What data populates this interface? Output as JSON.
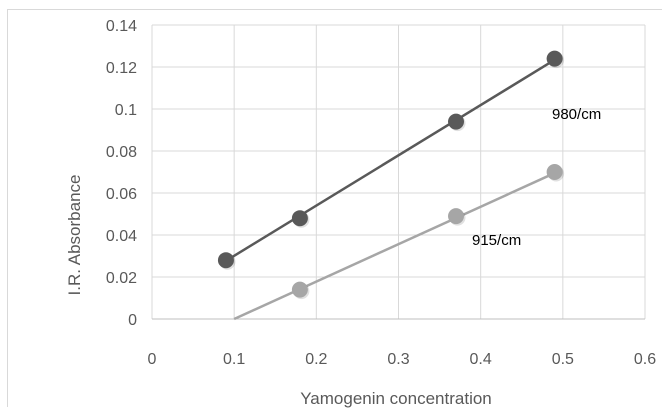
{
  "chart_data": {
    "type": "scatter",
    "xlabel": "Yamogenin concentration",
    "ylabel": "I.R. Absorbance",
    "xlim": [
      0,
      0.6
    ],
    "ylim": [
      0,
      0.14
    ],
    "xticks": [
      "0",
      "0.1",
      "0.2",
      "0.3",
      "0.4",
      "0.5",
      "0.6"
    ],
    "yticks": [
      "0",
      "0.02",
      "0.04",
      "0.06",
      "0.08",
      "0.1",
      "0.12",
      "0.14"
    ],
    "grid": true,
    "series": [
      {
        "name": "980/cm",
        "color": "#595959",
        "points": [
          [
            0.09,
            0.028
          ],
          [
            0.18,
            0.048
          ],
          [
            0.37,
            0.094
          ],
          [
            0.49,
            0.124
          ]
        ],
        "trendline": [
          [
            0.09,
            0.0277
          ],
          [
            0.49,
            0.1234
          ]
        ]
      },
      {
        "name": "915/cm",
        "color": "#a6a6a6",
        "points": [
          [
            0.18,
            0.014
          ],
          [
            0.37,
            0.049
          ],
          [
            0.49,
            0.07
          ]
        ],
        "trendline": [
          [
            0.1,
            0
          ],
          [
            0.49,
            0.0695
          ]
        ]
      }
    ]
  }
}
